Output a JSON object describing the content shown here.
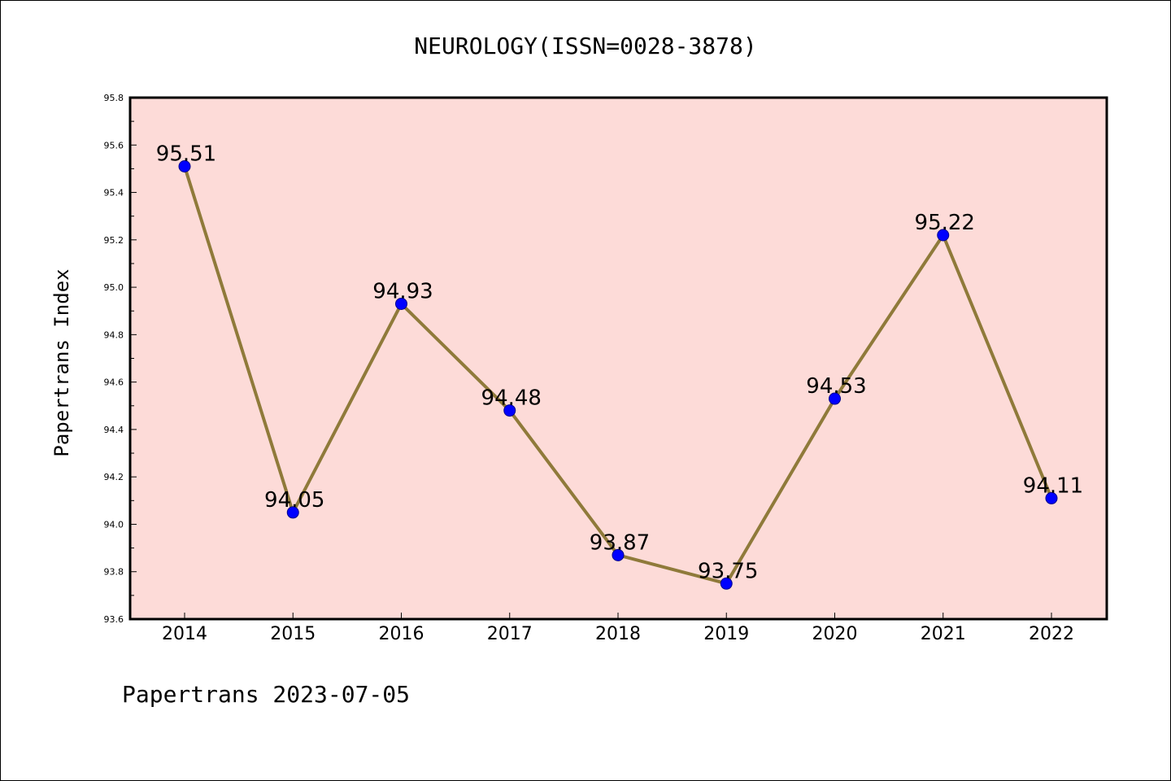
{
  "footer": "Papertrans 2023-07-05",
  "colors": {
    "plot_background": "#fddbd8",
    "line": "#8f7a3a",
    "marker": "#0000ff",
    "marker_edge": "#00008b"
  },
  "chart_data": {
    "type": "line",
    "title": "NEUROLOGY(ISSN=0028-3878)",
    "xlabel": "",
    "ylabel": "Papertrans Index",
    "categories": [
      "2014",
      "2015",
      "2016",
      "2017",
      "2018",
      "2019",
      "2020",
      "2021",
      "2022"
    ],
    "series": [
      {
        "values": [
          95.51,
          94.05,
          94.93,
          94.48,
          93.87,
          93.75,
          94.53,
          95.22,
          94.11
        ],
        "labels": [
          "95.51",
          "94.05",
          "94.93",
          "94.48",
          "93.87",
          "93.75",
          "94.53",
          "95.22",
          "94.11"
        ]
      }
    ],
    "ylim": [
      93.6,
      95.8
    ],
    "yticks": [
      "93.6",
      "93.8",
      "94.0",
      "94.2",
      "94.4",
      "94.6",
      "94.8",
      "95.0",
      "95.2",
      "95.4",
      "95.6",
      "95.8"
    ],
    "grid": false,
    "legend": "none"
  }
}
